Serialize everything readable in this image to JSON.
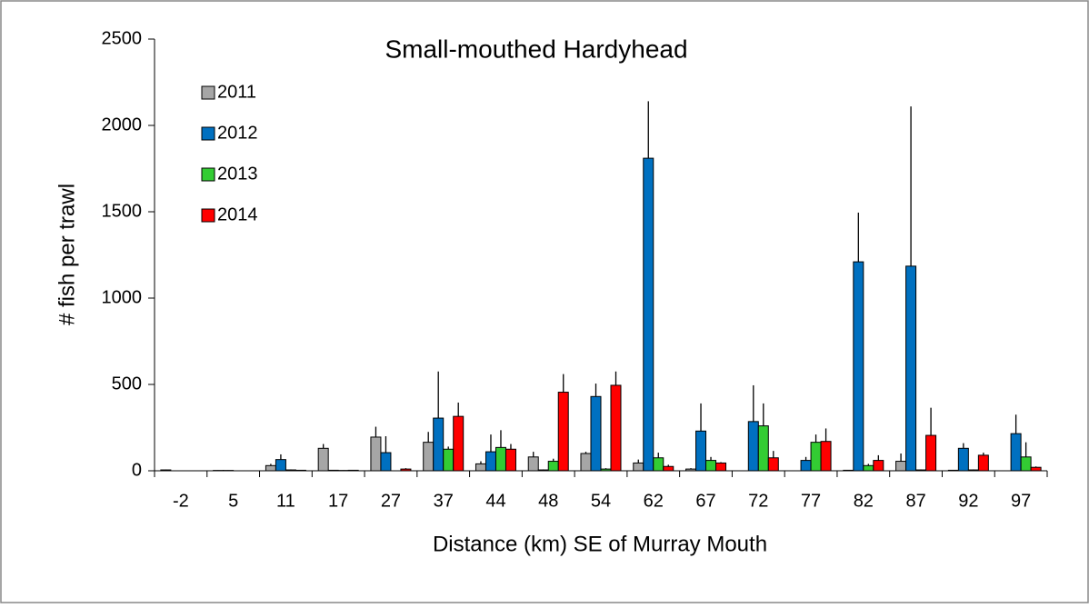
{
  "chart_data": {
    "type": "bar",
    "title": "Small-mouthed Hardyhead",
    "x_label": "Distance (km) SE of Murray Mouth",
    "y_label": "# fish per trawl",
    "categories": [
      "-2",
      "5",
      "11",
      "17",
      "27",
      "37",
      "44",
      "48",
      "54",
      "62",
      "67",
      "72",
      "77",
      "82",
      "87",
      "92",
      "97"
    ],
    "series": [
      {
        "name": "2011",
        "color": "#a6a6a6",
        "values": [
          5,
          2,
          30,
          130,
          195,
          165,
          40,
          80,
          100,
          45,
          10,
          0,
          0,
          3,
          55,
          3,
          0
        ],
        "errors": [
          2,
          1,
          10,
          25,
          60,
          60,
          15,
          30,
          10,
          20,
          5,
          0,
          0,
          2,
          45,
          2,
          0
        ]
      },
      {
        "name": "2012",
        "color": "#0070c0",
        "values": [
          0,
          2,
          65,
          3,
          105,
          305,
          110,
          5,
          430,
          1810,
          230,
          285,
          60,
          1210,
          1185,
          130,
          215
        ],
        "errors": [
          0,
          1,
          30,
          2,
          95,
          270,
          100,
          3,
          75,
          330,
          160,
          210,
          20,
          285,
          925,
          30,
          110
        ]
      },
      {
        "name": "2013",
        "color": "#33cc33",
        "values": [
          0,
          0,
          5,
          2,
          0,
          125,
          135,
          55,
          10,
          75,
          60,
          260,
          165,
          30,
          5,
          5,
          80
        ],
        "errors": [
          0,
          0,
          3,
          1,
          0,
          15,
          100,
          15,
          5,
          30,
          20,
          130,
          45,
          10,
          3,
          3,
          85
        ]
      },
      {
        "name": "2014",
        "color": "#ff0000",
        "values": [
          0,
          0,
          3,
          3,
          10,
          315,
          125,
          455,
          495,
          25,
          45,
          75,
          170,
          60,
          205,
          90,
          20
        ],
        "errors": [
          0,
          0,
          2,
          2,
          5,
          80,
          30,
          105,
          80,
          10,
          5,
          40,
          75,
          30,
          160,
          15,
          5
        ]
      }
    ],
    "ylim": [
      0,
      2500
    ],
    "yticks": [
      0,
      500,
      1000,
      1500,
      2000,
      2500
    ],
    "legend": "upper left",
    "grid": false
  }
}
